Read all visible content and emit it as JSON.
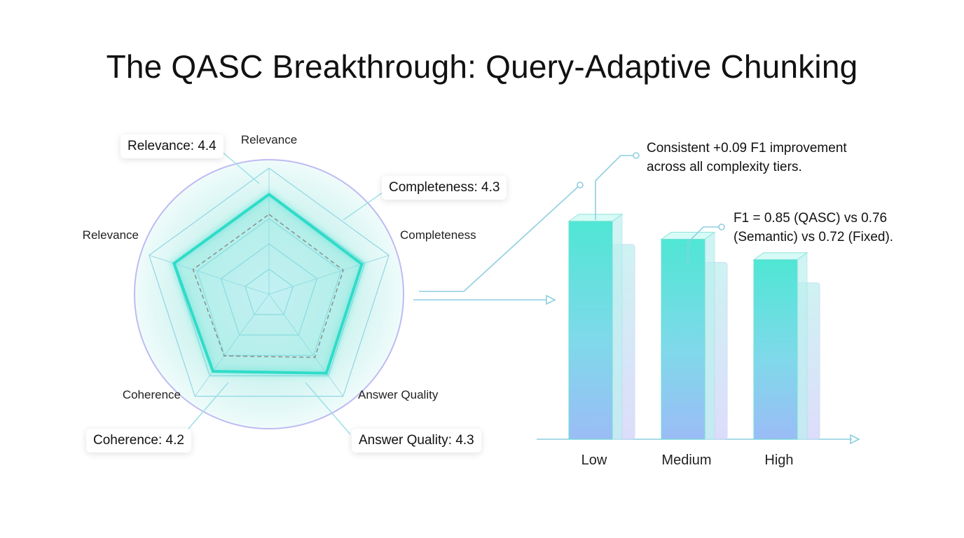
{
  "title": "The QASC Breakthrough: Query-Adaptive Chunking",
  "chart_data": [
    {
      "type": "radar",
      "axes": [
        "Relevance",
        "Completeness",
        "Answer Quality",
        "Coherence",
        "Relevance"
      ],
      "scores": [
        {
          "label": "Relevance: 4.4",
          "value": 4.4
        },
        {
          "label": "Completeness: 4.3",
          "value": 4.3
        },
        {
          "label": "Answer Quality: 4.3",
          "value": 4.3
        },
        {
          "label": "Coherence: 4.2",
          "value": 4.2
        }
      ],
      "scale_max": 5
    },
    {
      "type": "bar",
      "categories": [
        "Low",
        "Medium",
        "High"
      ],
      "series": [
        {
          "values": [
            0.85,
            0.78,
            0.7
          ]
        },
        {
          "values": [
            0.76,
            0.69,
            0.61
          ]
        }
      ],
      "annotations": [
        "Consistent +0.09 F1 improvement across all complexity tiers.",
        "F1 = 0.85 (QASC) vs 0.76 (Semantic) vs 0.72 (Fixed)."
      ]
    }
  ],
  "colors": {
    "primary": "#3fe0d0",
    "secondary": "#b9b4f2",
    "blue": "#8ab8f5"
  }
}
